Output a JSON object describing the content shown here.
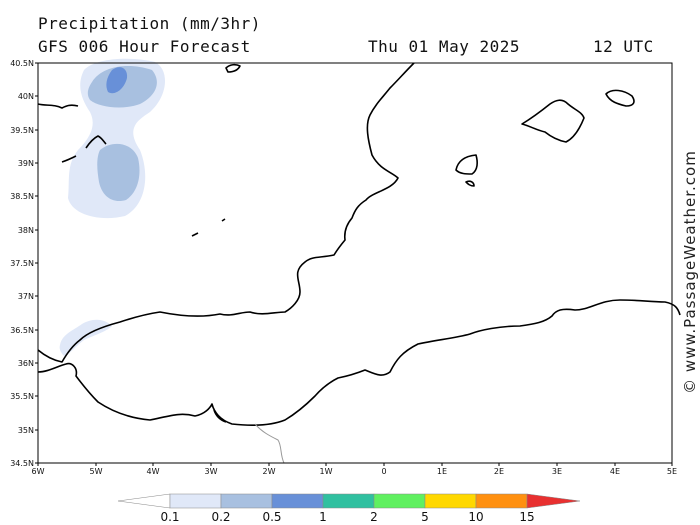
{
  "header": {
    "title": "Precipitation (mm/3hr)",
    "subtitle": "GFS 006 Hour Forecast",
    "date": "Thu 01 May 2025",
    "time": "12 UTC"
  },
  "map": {
    "lat_ticks": [
      "40.5N",
      "40N",
      "39.5N",
      "39N",
      "38.5N",
      "38N",
      "37.5N",
      "37N",
      "36.5N",
      "36N",
      "35.5N",
      "35N",
      "34.5N"
    ],
    "lon_ticks": [
      "6W",
      "5W",
      "4W",
      "3W",
      "2W",
      "1W",
      "0",
      "1E",
      "2E",
      "3E",
      "4E",
      "5E"
    ],
    "lat_range": [
      34.5,
      40.5
    ],
    "lon_range": [
      -6,
      5
    ]
  },
  "legend": {
    "labels": [
      "0.1",
      "0.2",
      "0.5",
      "1",
      "2",
      "5",
      "10",
      "15"
    ],
    "colors": [
      "#ffffff",
      "#e0e8f8",
      "#a8c0e0",
      "#6890d8",
      "#30c0a0",
      "#60f060",
      "#ffd800",
      "#ff9010",
      "#e83030"
    ]
  },
  "copyright": "© www.PassageWeather.com"
}
